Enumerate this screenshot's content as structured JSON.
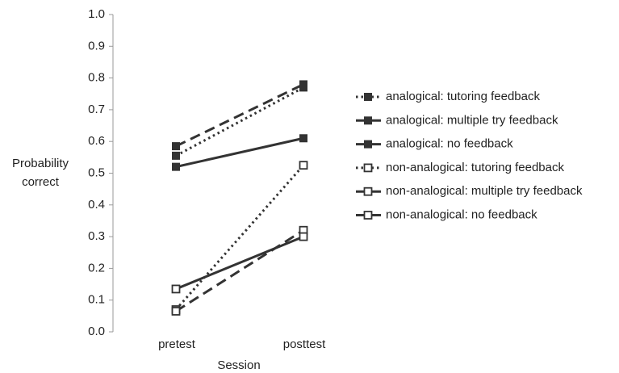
{
  "chart_data": {
    "type": "line",
    "x_label": "Session",
    "y_label": "Probability correct",
    "categories": [
      "pretest",
      "posttest"
    ],
    "ylim": [
      0,
      1
    ],
    "yticks": [
      {
        "value": 0,
        "label": "0.0"
      },
      0.1,
      0.2,
      0.3,
      0.4,
      0.5,
      0.6,
      0.7,
      0.8,
      0.9,
      {
        "value": 1,
        "label": "1.0"
      }
    ],
    "grid": false,
    "legend": "right",
    "series": [
      {
        "name": "analogical: tutoring feedback",
        "color": "#333333",
        "dash": "dotted",
        "marker": "filled",
        "values": [
          0.555,
          0.77
        ]
      },
      {
        "name": "analogical: multiple try feedback",
        "color": "#333333",
        "dash": "dashed",
        "marker": "filled",
        "values": [
          0.585,
          0.78
        ]
      },
      {
        "name": "analogical: no feedback",
        "color": "#333333",
        "dash": "solid",
        "marker": "filled",
        "values": [
          0.52,
          0.61
        ]
      },
      {
        "name": "non-analogical: tutoring feedback",
        "color": "#333333",
        "dash": "dotted",
        "marker": "hollow",
        "values": [
          0.07,
          0.525
        ]
      },
      {
        "name": "non-analogical: multiple try feedback",
        "color": "#333333",
        "dash": "dashed",
        "marker": "hollow",
        "values": [
          0.065,
          0.32
        ]
      },
      {
        "name": "non-analogical: no feedback",
        "color": "#333333",
        "dash": "solid",
        "marker": "hollow",
        "values": [
          0.135,
          0.3
        ]
      }
    ]
  }
}
